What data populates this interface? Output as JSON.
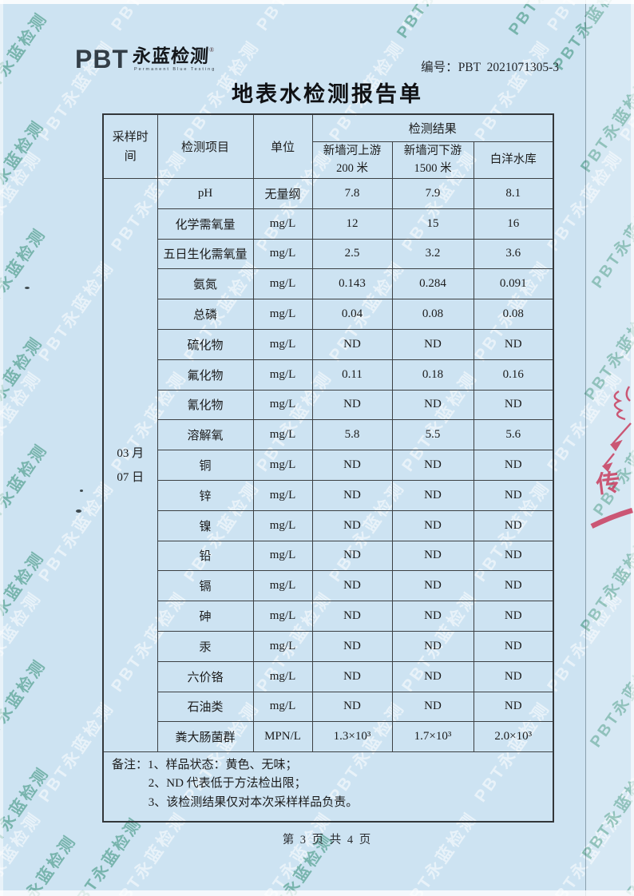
{
  "page": {
    "report_no_label": "编号：",
    "report_no": "PBT  2021071305-3",
    "title": "地表水检测报告单",
    "footer": "第 3 页 共 4 页"
  },
  "logo": {
    "pbt": "PBT",
    "name": "永蓝检测",
    "reg_mark": "®",
    "subtext": "Permanent Blue Testing"
  },
  "watermark": {
    "text": "PBT永蓝检测",
    "white_color": "rgba(255,255,255,0.55)",
    "green_color": "rgba(35,134,104,0.5)"
  },
  "stamp": {
    "char": "传",
    "color": "#c93d5e"
  },
  "table": {
    "headers": {
      "sampling_time": "采样时\n间",
      "item": "检测项目",
      "unit": "单位",
      "result": "检测结果"
    },
    "locations": [
      "新墙河上游\n200 米",
      "新墙河下游\n1500 米",
      "白洋水库"
    ],
    "sampling_time": "03 月\n07 日",
    "rows": [
      {
        "item": "pH",
        "unit": "无量纲",
        "v1": "7.8",
        "v2": "7.9",
        "v3": "8.1"
      },
      {
        "item": "化学需氧量",
        "unit": "mg/L",
        "v1": "12",
        "v2": "15",
        "v3": "16"
      },
      {
        "item": "五日生化需氧量",
        "unit": "mg/L",
        "v1": "2.5",
        "v2": "3.2",
        "v3": "3.6"
      },
      {
        "item": "氨氮",
        "unit": "mg/L",
        "v1": "0.143",
        "v2": "0.284",
        "v3": "0.091"
      },
      {
        "item": "总磷",
        "unit": "mg/L",
        "v1": "0.04",
        "v2": "0.08",
        "v3": "0.08"
      },
      {
        "item": "硫化物",
        "unit": "mg/L",
        "v1": "ND",
        "v2": "ND",
        "v3": "ND"
      },
      {
        "item": "氟化物",
        "unit": "mg/L",
        "v1": "0.11",
        "v2": "0.18",
        "v3": "0.16"
      },
      {
        "item": "氰化物",
        "unit": "mg/L",
        "v1": "ND",
        "v2": "ND",
        "v3": "ND"
      },
      {
        "item": "溶解氧",
        "unit": "mg/L",
        "v1": "5.8",
        "v2": "5.5",
        "v3": "5.6"
      },
      {
        "item": "铜",
        "unit": "mg/L",
        "v1": "ND",
        "v2": "ND",
        "v3": "ND"
      },
      {
        "item": "锌",
        "unit": "mg/L",
        "v1": "ND",
        "v2": "ND",
        "v3": "ND"
      },
      {
        "item": "镍",
        "unit": "mg/L",
        "v1": "ND",
        "v2": "ND",
        "v3": "ND"
      },
      {
        "item": "铅",
        "unit": "mg/L",
        "v1": "ND",
        "v2": "ND",
        "v3": "ND"
      },
      {
        "item": "镉",
        "unit": "mg/L",
        "v1": "ND",
        "v2": "ND",
        "v3": "ND"
      },
      {
        "item": "砷",
        "unit": "mg/L",
        "v1": "ND",
        "v2": "ND",
        "v3": "ND"
      },
      {
        "item": "汞",
        "unit": "mg/L",
        "v1": "ND",
        "v2": "ND",
        "v3": "ND"
      },
      {
        "item": "六价铬",
        "unit": "mg/L",
        "v1": "ND",
        "v2": "ND",
        "v3": "ND"
      },
      {
        "item": "石油类",
        "unit": "mg/L",
        "v1": "ND",
        "v2": "ND",
        "v3": "ND"
      },
      {
        "item": "粪大肠菌群",
        "unit": "MPN/L",
        "v1": "1.3×10³",
        "v2": "1.7×10³",
        "v3": "2.0×10³"
      }
    ],
    "notes": [
      "备注：1、样品状态：黄色、无味；",
      "2、ND 代表低于方法检出限；",
      "3、该检测结果仅对本次采样样品负责。"
    ]
  }
}
